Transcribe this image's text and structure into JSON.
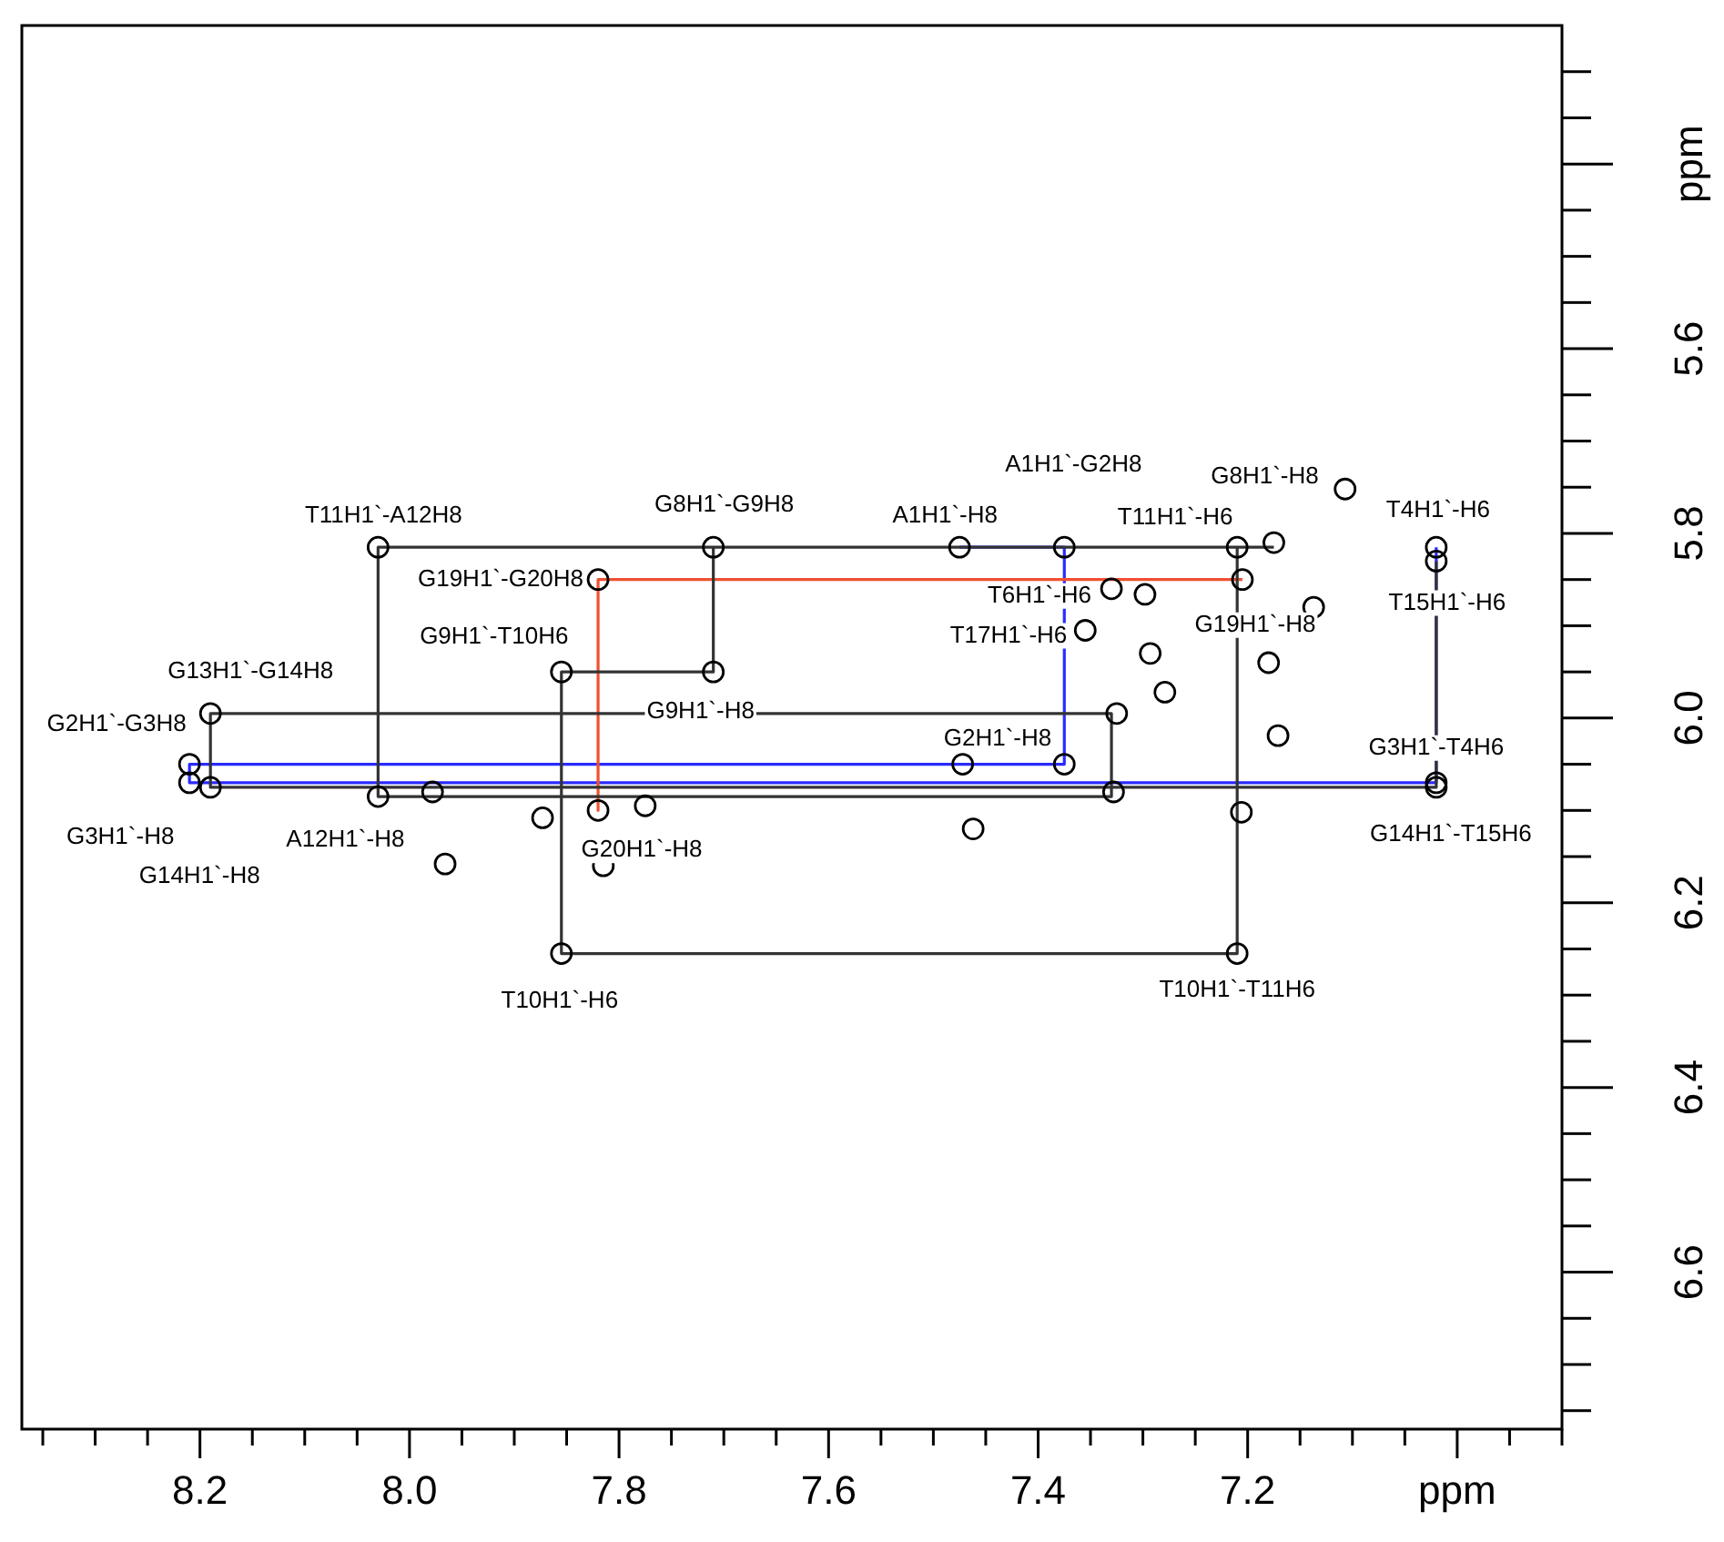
{
  "chart_data": {
    "type": "scatter",
    "xlim": [
      8.37,
      6.9
    ],
    "ylim": [
      6.77,
      5.25
    ],
    "xticks": [
      {
        "value": 8.35,
        "label": null
      },
      {
        "value": 8.3,
        "label": null
      },
      {
        "value": 8.25,
        "label": null
      },
      8.2,
      {
        "value": 8.15,
        "label": null
      },
      {
        "value": 8.1,
        "label": null
      },
      {
        "value": 8.05,
        "label": null
      },
      {
        "value": 8,
        "label": "8.0"
      },
      {
        "value": 7.95,
        "label": null
      },
      {
        "value": 7.9,
        "label": null
      },
      {
        "value": 7.85,
        "label": null
      },
      7.8,
      {
        "value": 7.75,
        "label": null
      },
      {
        "value": 7.7,
        "label": null
      },
      {
        "value": 7.65,
        "label": null
      },
      7.6,
      {
        "value": 7.55,
        "label": null
      },
      {
        "value": 7.5,
        "label": null
      },
      {
        "value": 7.45,
        "label": null
      },
      7.4,
      {
        "value": 7.35,
        "label": null
      },
      {
        "value": 7.3,
        "label": null
      },
      {
        "value": 7.25,
        "label": null
      },
      7.2,
      {
        "value": 7.15,
        "label": null
      },
      {
        "value": 7.1,
        "label": null
      },
      {
        "value": 7.05,
        "label": null
      },
      {
        "value": 7,
        "label": "ppm"
      },
      {
        "value": 6.95,
        "label": null
      },
      {
        "value": 6.9,
        "label": null
      }
    ],
    "yticks": [
      {
        "value": 5.3,
        "label": null
      },
      {
        "value": 5.35,
        "label": null
      },
      {
        "value": 5.4,
        "label": "ppm"
      },
      {
        "value": 5.45,
        "label": null
      },
      {
        "value": 5.5,
        "label": null
      },
      {
        "value": 5.55,
        "label": null
      },
      5.6,
      {
        "value": 5.65,
        "label": null
      },
      {
        "value": 5.7,
        "label": null
      },
      {
        "value": 5.75,
        "label": null
      },
      5.8,
      {
        "value": 5.85,
        "label": null
      },
      {
        "value": 5.9,
        "label": null
      },
      {
        "value": 5.95,
        "label": null
      },
      {
        "value": 6,
        "label": "6.0"
      },
      {
        "value": 6.05,
        "label": null
      },
      {
        "value": 6.1,
        "label": null
      },
      {
        "value": 6.15,
        "label": null
      },
      6.2,
      {
        "value": 6.25,
        "label": null
      },
      {
        "value": 6.3,
        "label": null
      },
      {
        "value": 6.35,
        "label": null
      },
      6.4,
      {
        "value": 6.45,
        "label": null
      },
      {
        "value": 6.5,
        "label": null
      },
      {
        "value": 6.55,
        "label": null
      },
      6.6,
      {
        "value": 6.65,
        "label": null
      },
      {
        "value": 6.7,
        "label": null
      },
      {
        "value": 6.75,
        "label": null
      }
    ],
    "grid": false,
    "legend": false,
    "marker": "circle",
    "series": [
      {
        "type": "line",
        "color": "#333333",
        "marker": "none",
        "x": [
          7.175,
          7.71,
          7.71,
          7.855,
          7.855,
          7.21,
          7.21,
          8.03,
          8.03,
          7.33,
          7.33,
          8.19,
          8.19,
          7.02,
          7.02
        ],
        "values": [
          5.815,
          5.815,
          5.95,
          5.95,
          6.255,
          6.255,
          5.815,
          5.815,
          6.085,
          6.085,
          5.995,
          5.995,
          6.075,
          6.075,
          5.83
        ]
      },
      {
        "type": "line",
        "color": "#f05030",
        "marker": "none",
        "x": [
          7.205,
          7.82,
          7.82
        ],
        "values": [
          5.85,
          5.85,
          6.1
        ]
      },
      {
        "type": "line",
        "color": "#2a2aff",
        "marker": "none",
        "x": [
          7.475,
          7.375,
          7.375,
          8.21,
          8.21,
          7.02,
          7.02
        ],
        "values": [
          5.815,
          5.815,
          6.05,
          6.05,
          6.07,
          6.07,
          5.815
        ]
      },
      {
        "color": "#000000",
        "x": [
          8.03,
          7.82,
          7.855,
          8.19,
          8.21,
          8.19,
          8.03,
          7.71,
          7.71,
          7.475,
          7.375,
          7.33,
          7.355,
          7.375,
          7.21,
          7.175,
          7.205,
          7.02,
          7.02,
          7.02,
          7.02,
          7.82,
          7.855,
          7.21,
          8.21
        ],
        "values": [
          5.815,
          5.85,
          5.95,
          5.995,
          6.07,
          6.075,
          6.085,
          5.815,
          5.95,
          5.815,
          5.815,
          5.86,
          5.905,
          6.05,
          5.815,
          5.81,
          5.85,
          5.815,
          5.83,
          6.07,
          6.075,
          6.1,
          6.255,
          6.255,
          6.05
        ],
        "value_labels": [
          "T11H1`-A12H8",
          "G19H1`-G20H8",
          "G9H1`-T10H6",
          "G13H1`-G14H8",
          "G3H1`-H8",
          "G14H1`-H8",
          "A12H1`-H8",
          "G8H1`-G9H8",
          "G9H1`-H8",
          "A1H1`-H8",
          "A1H1`-G2H8",
          "T6H1`-H6",
          "T17H1`-H6",
          "G2H1`-H8",
          "T11H1`-H6",
          "G8H1`-H8",
          "G19H1`-H8",
          "T4H1`-H6",
          "T15H1`-H6",
          "G3H1`-T4H6",
          "G14H1`-T15H6",
          "G20H1`-H8",
          "T10H1`-H6",
          "T10H1`-T11H6",
          "G2H1`-G3H8"
        ]
      },
      {
        "color": "#000000",
        "x": [
          7.325,
          7.966,
          7.978,
          7.873,
          7.815,
          7.775,
          7.472,
          7.462,
          7.328,
          7.298,
          7.18,
          7.171,
          7.206,
          7.137,
          7.107,
          7.293,
          7.279
        ],
        "values": [
          5.995,
          6.158,
          6.08,
          6.108,
          6.16,
          6.095,
          6.05,
          6.12,
          6.08,
          5.866,
          5.94,
          6.019,
          6.102,
          5.88,
          5.752,
          5.93,
          5.972
        ]
      }
    ]
  }
}
